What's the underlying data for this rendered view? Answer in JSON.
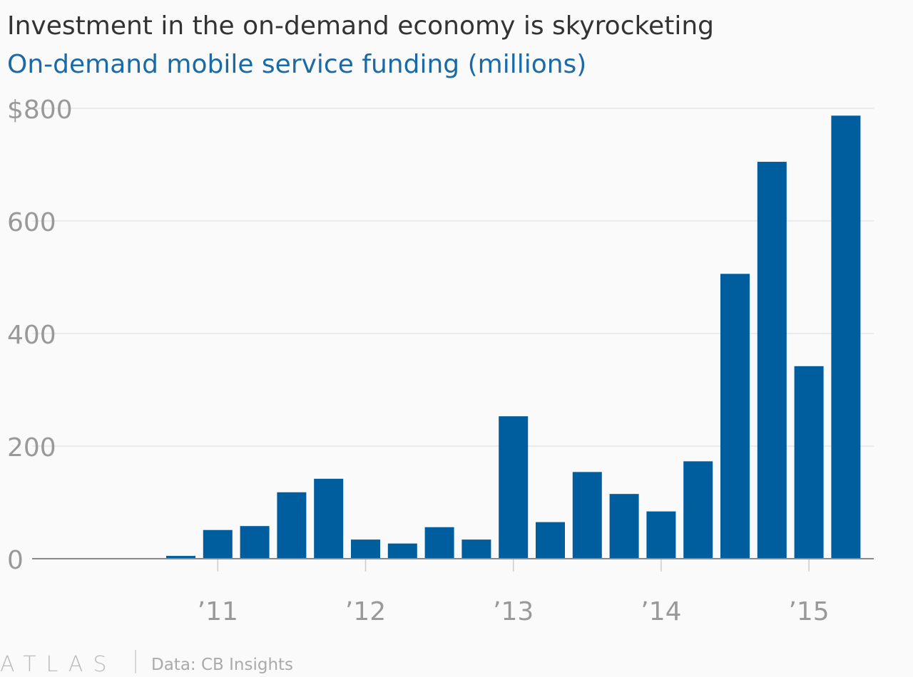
{
  "chart_data": {
    "type": "bar",
    "title": "Investment in the on-demand economy is skyrocketing",
    "subtitle": "On-demand mobile service funding (millions)",
    "categories": [
      null,
      null,
      null,
      "’11",
      null,
      null,
      null,
      "’12",
      null,
      null,
      null,
      "’13",
      null,
      null,
      null,
      "’14",
      null,
      null,
      null,
      "’15",
      null
    ],
    "values": [
      0.5,
      1,
      5,
      51,
      58,
      118,
      142,
      34,
      27,
      56,
      34,
      253,
      65,
      154,
      115,
      84,
      173,
      506,
      705,
      342,
      787
    ],
    "color": "#005e9f",
    "ylim": [
      0,
      800
    ],
    "yticks": [
      0,
      200,
      400,
      600,
      {
        "value": 800,
        "label": "$800"
      }
    ],
    "grid": true,
    "source": "Data: CB Insights",
    "brand": "ATLAS"
  }
}
